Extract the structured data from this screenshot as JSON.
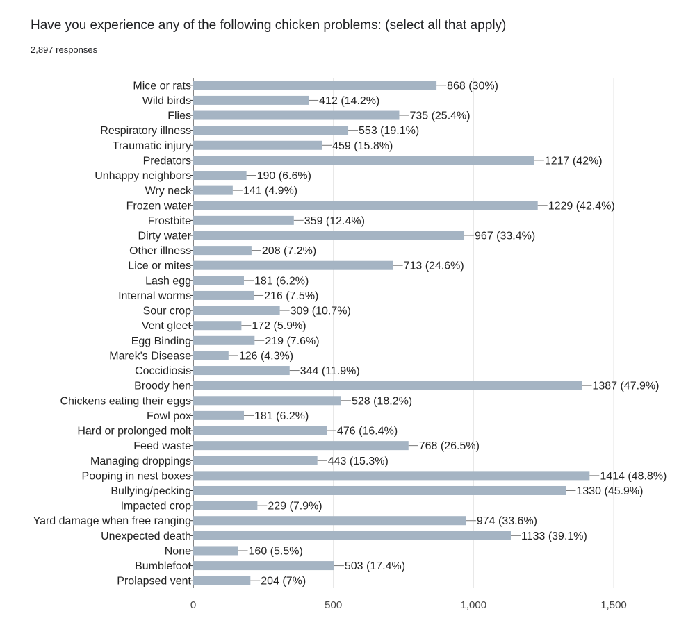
{
  "chart_data": {
    "type": "bar",
    "orientation": "horizontal",
    "title": "Have you experience any of the following chicken problems: (select all that apply)",
    "subtitle": "2,897 responses",
    "xlim": [
      0,
      1500
    ],
    "xticks": [
      "0",
      "500",
      "1,000",
      "1,500"
    ],
    "xtick_values": [
      0,
      500,
      1000,
      1500
    ],
    "bar_color": "#a5b4c3",
    "categories": [
      "Mice or rats",
      "Wild birds",
      "Flies",
      "Respiratory illness",
      "Traumatic injury",
      "Predators",
      "Unhappy neighbors",
      "Wry neck",
      "Frozen water",
      "Frostbite",
      "Dirty water",
      "Other illness",
      "Lice or mites",
      "Lash egg",
      "Internal worms",
      "Sour crop",
      "Vent gleet",
      "Egg Binding",
      "Marek's Disease",
      "Coccidiosis",
      "Broody hen",
      "Chickens eating their eggs",
      "Fowl pox",
      "Hard or prolonged molt",
      "Feed waste",
      "Managing droppings",
      "Pooping in nest boxes",
      "Bullying/pecking",
      "Impacted crop",
      "Yard damage when free ranging",
      "Unexpected death",
      "None",
      "Bumblefoot",
      "Prolapsed vent"
    ],
    "values": [
      868,
      412,
      735,
      553,
      459,
      1217,
      190,
      141,
      1229,
      359,
      967,
      208,
      713,
      181,
      216,
      309,
      172,
      219,
      126,
      344,
      1387,
      528,
      181,
      476,
      768,
      443,
      1414,
      1330,
      229,
      974,
      1133,
      160,
      503,
      204
    ],
    "labels": [
      "868 (30%)",
      "412 (14.2%)",
      "735 (25.4%)",
      "553 (19.1%)",
      "459 (15.8%)",
      "1217 (42%)",
      "190 (6.6%)",
      "141 (4.9%)",
      "1229 (42.4%)",
      "359 (12.4%)",
      "967 (33.4%)",
      "208 (7.2%)",
      "713 (24.6%)",
      "181 (6.2%)",
      "216 (7.5%)",
      "309 (10.7%)",
      "172 (5.9%)",
      "219 (7.6%)",
      "126 (4.3%)",
      "344 (11.9%)",
      "1387 (47.9%)",
      "528 (18.2%)",
      "181 (6.2%)",
      "476 (16.4%)",
      "768 (26.5%)",
      "443 (15.3%)",
      "1414 (48.8%)",
      "1330 (45.9%)",
      "229 (7.9%)",
      "974 (33.6%)",
      "1133 (39.1%)",
      "160 (5.5%)",
      "503 (17.4%)",
      "204 (7%)"
    ],
    "grid": true
  }
}
